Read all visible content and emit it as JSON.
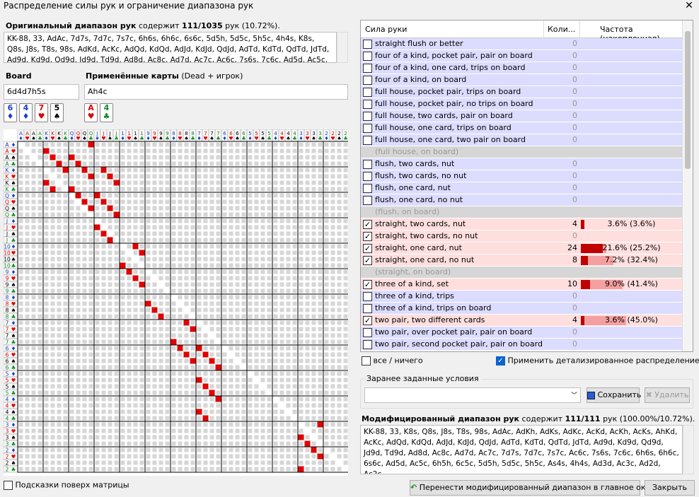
{
  "window": {
    "title": "Распределение силы рук и ограничение диапазона рук",
    "close": "✕"
  },
  "original": {
    "label": "Оригинальный диапазон рук",
    "contains_word": "содержит",
    "count": "111/1035",
    "suffix": "рук (10.72%).",
    "text": "KK-88, 33, AdAc, 7d7s, 7d7c, 7s7c, 6h6s, 6h6c, 6s6c, 5d5h, 5d5c, 5h5c, 4h4s, K8s, Q8s, J8s, T8s, 98s, AdKd, AcKc, AdQd, KdQd, AdJd, KdJd, QdJd, AdTd, KdTd, QdTd, JdTd, Ad9d, Kd9d, Qd9d, Jd9d, Td9d, Ad8d, Ac8c, Ad7d, Ac7c, Ac6c, 7s6s, 7c6c, Ad5d, Ac5c, 6h5h, 6c5c, As4s,"
  },
  "board": {
    "label": "Board",
    "value": "6d4d7h5s",
    "cards": [
      {
        "rank": "6",
        "suit": "♦",
        "color": "blu"
      },
      {
        "rank": "4",
        "suit": "♦",
        "color": "blu"
      },
      {
        "rank": "7",
        "suit": "♥",
        "color": "red"
      },
      {
        "rank": "5",
        "suit": "♠",
        "color": "blk"
      }
    ]
  },
  "applied": {
    "label": "Применённые карты",
    "hint": "(Dead + игрок)",
    "value": "Ah4c",
    "cards": [
      {
        "rank": "A",
        "suit": "♥",
        "color": "red"
      },
      {
        "rank": "4",
        "suit": "♣",
        "color": "grn"
      }
    ]
  },
  "matrix": {
    "ranks": [
      "A",
      "K",
      "Q",
      "J",
      "10",
      "9",
      "8",
      "7",
      "6",
      "5",
      "4",
      "3",
      "2"
    ],
    "suits": [
      "♦",
      "♥",
      "♠",
      "♣"
    ],
    "highlight_cells": [
      [
        0,
        1
      ],
      [
        0,
        2
      ],
      [
        1,
        1
      ],
      [
        1,
        2
      ],
      [
        1,
        3
      ],
      [
        2,
        2
      ],
      [
        2,
        3
      ],
      [
        3,
        3
      ],
      [
        4,
        4
      ],
      [
        5,
        4
      ],
      [
        6,
        5
      ],
      [
        7,
        6
      ],
      [
        8,
        6
      ],
      [
        8,
        7
      ],
      [
        9,
        7
      ],
      [
        10,
        7
      ],
      [
        11,
        11
      ],
      [
        12,
        11
      ]
    ]
  },
  "strength_table": {
    "col_name": "Сила руки",
    "col_count": "Коли...",
    "col_freq": "Частота (накопленная)",
    "rows": [
      {
        "name": "straight flush or better",
        "count": "0",
        "checked": false,
        "type": "item",
        "freq": "",
        "bar": 0,
        "cum": 0
      },
      {
        "name": "four of a kind, pocket pair, pair on board",
        "count": "0",
        "checked": false,
        "type": "item",
        "freq": "",
        "bar": 0,
        "cum": 0
      },
      {
        "name": "four of a kind, one card, trips on board",
        "count": "0",
        "checked": false,
        "type": "item",
        "freq": "",
        "bar": 0,
        "cum": 0
      },
      {
        "name": "four of a kind, on board",
        "count": "0",
        "checked": false,
        "type": "item",
        "freq": "",
        "bar": 0,
        "cum": 0
      },
      {
        "name": "full house, pocket pair, trips on board",
        "count": "0",
        "checked": false,
        "type": "item",
        "freq": "",
        "bar": 0,
        "cum": 0
      },
      {
        "name": "full house, pocket pair, no trips on board",
        "count": "0",
        "checked": false,
        "type": "item",
        "freq": "",
        "bar": 0,
        "cum": 0
      },
      {
        "name": "full house, two cards, pair on board",
        "count": "0",
        "checked": false,
        "type": "item",
        "freq": "",
        "bar": 0,
        "cum": 0
      },
      {
        "name": "full house, one card, trips on board",
        "count": "0",
        "checked": false,
        "type": "item",
        "freq": "",
        "bar": 0,
        "cum": 0
      },
      {
        "name": "full house, one card, two pair on board",
        "count": "0",
        "checked": false,
        "type": "item",
        "freq": "",
        "bar": 0,
        "cum": 0
      },
      {
        "name": "(full house, on board)",
        "count": "",
        "checked": false,
        "type": "group",
        "freq": "",
        "bar": 0,
        "cum": 0
      },
      {
        "name": "flush, two cards, nut",
        "count": "0",
        "checked": false,
        "type": "item",
        "freq": "",
        "bar": 0,
        "cum": 0
      },
      {
        "name": "flush, two cards, no nut",
        "count": "0",
        "checked": false,
        "type": "item",
        "freq": "",
        "bar": 0,
        "cum": 0
      },
      {
        "name": "flush, one card, nut",
        "count": "0",
        "checked": false,
        "type": "item",
        "freq": "",
        "bar": 0,
        "cum": 0
      },
      {
        "name": "flush, one card, no nut",
        "count": "0",
        "checked": false,
        "type": "item",
        "freq": "",
        "bar": 0,
        "cum": 0
      },
      {
        "name": "(flush, on board)",
        "count": "",
        "checked": false,
        "type": "group",
        "freq": "",
        "bar": 0,
        "cum": 0
      },
      {
        "name": "straight, two cards, nut",
        "count": "4",
        "checked": true,
        "type": "item",
        "freq": "3.6% (3.6%)",
        "bar": 3.6,
        "cum": 3.6
      },
      {
        "name": "straight, two cards, no nut",
        "count": "0",
        "checked": true,
        "type": "item",
        "freq": "",
        "bar": 0,
        "cum": 3.6
      },
      {
        "name": "straight, one card, nut",
        "count": "24",
        "checked": true,
        "type": "item",
        "freq": "21.6% (25.2%)",
        "bar": 21.6,
        "cum": 25.2
      },
      {
        "name": "straight, one card, no nut",
        "count": "8",
        "checked": true,
        "type": "item",
        "freq": "7.2% (32.4%)",
        "bar": 7.2,
        "cum": 32.4
      },
      {
        "name": "(straight, on board)",
        "count": "",
        "checked": false,
        "type": "group",
        "freq": "",
        "bar": 0,
        "cum": 0
      },
      {
        "name": "three of a kind, set",
        "count": "10",
        "checked": true,
        "type": "item",
        "freq": "9.0% (41.4%)",
        "bar": 9.0,
        "cum": 41.4
      },
      {
        "name": "three of a kind, trips",
        "count": "0",
        "checked": false,
        "type": "item",
        "freq": "",
        "bar": 0,
        "cum": 0
      },
      {
        "name": "three of a kind, trips on board",
        "count": "0",
        "checked": false,
        "type": "item",
        "freq": "",
        "bar": 0,
        "cum": 0
      },
      {
        "name": "two pair, two different cards",
        "count": "4",
        "checked": true,
        "type": "item",
        "freq": "3.6% (45.0%)",
        "bar": 3.6,
        "cum": 45.0
      },
      {
        "name": "two pair, over pocket pair, pair on board",
        "count": "0",
        "checked": false,
        "type": "item",
        "freq": "",
        "bar": 0,
        "cum": 0
      },
      {
        "name": "two pair, second pocket pair, pair on board",
        "count": "0",
        "checked": false,
        "type": "item",
        "freq": "",
        "bar": 0,
        "cum": 0
      }
    ]
  },
  "all_nothing": {
    "label": "все / ничего",
    "checked": false
  },
  "detailed": {
    "label": "Применить детализированное распределение силы",
    "checked": true
  },
  "presets": {
    "label": "Заранее заданные условия",
    "value": "",
    "save": "Сохранить",
    "delete": "Удалить"
  },
  "modified": {
    "label": "Модифицированный диапазон рук",
    "contains_word": "содержит",
    "count": "111/111",
    "suffix": "рук (100.00%/10.72%).",
    "text": "KK-88, 33, K8s, Q8s, J8s, T8s, 98s, AdAc, AdKh, AdKs, AdKc, AcKd, AcKh, AcKs, AhKd, AcKc, AdQd, KdQd, AdJd, KdJd, QdJd, AdTd, KdTd, QdTd, JdTd, Ad9d, Kd9d, Qd9d, Jd9d, Td9d, Ad8d, Ac8c, Ad7d, Ac7c, 7d7s, 7d7c, 7s7c, Ac6c, 7s6s, 7c6c, 6h6s, 6h6c, 6s6c, Ad5d, Ac5c, 6h5h, 6c5c, 5d5h, 5d5c, 5h5c, As4s, 4h4s, Ad3d, Ac3c, Ad2d, Ac2c"
  },
  "hints": {
    "label": "Подсказки поверх матрицы",
    "checked": false
  },
  "transfer": {
    "label": "Перенести модифицированный диапазон в главное окно"
  },
  "close": {
    "label": "Закрыть"
  }
}
